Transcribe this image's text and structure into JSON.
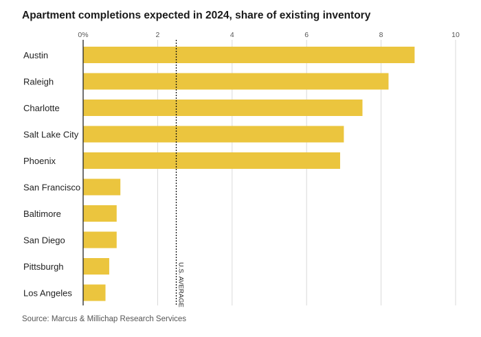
{
  "title": "Apartment completions expected in 2024, share of existing inventory",
  "source": "Source: Marcus & Millichap Research Services",
  "chart_data": {
    "type": "bar",
    "orientation": "horizontal",
    "title": "Apartment completions expected in 2024, share of existing inventory",
    "categories": [
      "Austin",
      "Raleigh",
      "Charlotte",
      "Salt Lake City",
      "Phoenix",
      "San Francisco",
      "Baltimore",
      "San Diego",
      "Pittsburgh",
      "Los Angeles"
    ],
    "values": [
      8.9,
      8.2,
      7.5,
      7.0,
      6.9,
      1.0,
      0.9,
      0.9,
      0.7,
      0.6
    ],
    "xlim": [
      0,
      10
    ],
    "xticks": [
      0,
      2,
      4,
      6,
      8,
      10
    ],
    "xtick_labels": [
      "0%",
      "2",
      "4",
      "6",
      "8",
      "10"
    ],
    "grid": true,
    "bar_color": "#EBC53E",
    "reference_line": {
      "label": "U.S. AVERAGE",
      "value": 2.5,
      "style": "dotted"
    }
  }
}
